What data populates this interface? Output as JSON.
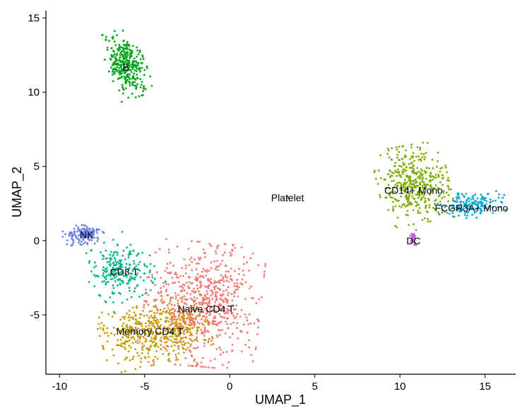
{
  "chart_data": {
    "type": "scatter",
    "title": "",
    "xlabel": "UMAP_1",
    "ylabel": "UMAP_2",
    "xlim": [
      -10.8,
      16.8
    ],
    "ylim": [
      -9.0,
      15.5
    ],
    "xticks": [
      -10,
      -5,
      0,
      5,
      10,
      15
    ],
    "yticks": [
      -5,
      0,
      5,
      10,
      15
    ],
    "xtick_labels": [
      "-10",
      "-5",
      "0",
      "5",
      "10",
      "15"
    ],
    "ytick_labels": [
      "-5",
      "0",
      "5",
      "10",
      "15"
    ],
    "grid": false,
    "legend": "none",
    "clusters": [
      {
        "label": "Naive CD4 T",
        "color": "#F8766D",
        "label_x": -1.4,
        "label_y": -4.6,
        "blobs": [
          {
            "cx": -1.6,
            "cy": -4.3,
            "sx": 1.55,
            "sy": 1.9,
            "rot": -0.1,
            "n": 700
          }
        ]
      },
      {
        "label": "Memory CD4 T",
        "color": "#C49A00",
        "label_x": -4.7,
        "label_y": -6.1,
        "blobs": [
          {
            "cx": -4.4,
            "cy": -6.2,
            "sx": 1.45,
            "sy": 0.95,
            "rot": 0.25,
            "n": 470
          }
        ]
      },
      {
        "label": "CD14+ Mono",
        "color": "#7CAE00",
        "label_x": 10.8,
        "label_y": 3.4,
        "blobs": [
          {
            "cx": 10.8,
            "cy": 3.8,
            "sx": 0.95,
            "sy": 1.2,
            "rot": 0.2,
            "n": 430
          }
        ]
      },
      {
        "label": "B",
        "color": "#00A619",
        "label_x": -6.1,
        "label_y": 11.7,
        "blobs": [
          {
            "cx": -6.1,
            "cy": 11.9,
            "sx": 0.5,
            "sy": 1.05,
            "rot": 0.35,
            "n": 330
          }
        ]
      },
      {
        "label": "CD8 T",
        "color": "#00B68A",
        "label_x": -6.2,
        "label_y": -2.1,
        "blobs": [
          {
            "cx": -6.4,
            "cy": -2.0,
            "sx": 0.9,
            "sy": 0.95,
            "rot": 0.6,
            "n": 230
          }
        ]
      },
      {
        "label": "FCGR3A+ Mono",
        "color": "#00A9D8",
        "label_x": 14.2,
        "label_y": 2.2,
        "blobs": [
          {
            "cx": 14.2,
            "cy": 2.4,
            "sx": 0.9,
            "sy": 0.4,
            "rot": 0.1,
            "n": 160
          }
        ]
      },
      {
        "label": "NK",
        "color": "#6A7EF0",
        "label_x": -8.4,
        "label_y": 0.4,
        "blobs": [
          {
            "cx": -8.6,
            "cy": 0.4,
            "sx": 0.55,
            "sy": 0.3,
            "rot": 0.1,
            "n": 150
          }
        ]
      },
      {
        "label": "DC",
        "color": "#D25BE0",
        "label_x": 10.8,
        "label_y": 0.0,
        "blobs": [
          {
            "cx": 10.8,
            "cy": 0.25,
            "sx": 0.1,
            "sy": 0.25,
            "rot": 0.0,
            "n": 30
          }
        ]
      },
      {
        "label": "Platelet",
        "color": "#EF5FA6",
        "label_x": 3.4,
        "label_y": 2.9,
        "blobs": [
          {
            "cx": 3.4,
            "cy": 2.95,
            "sx": 0.05,
            "sy": 0.05,
            "rot": 0.0,
            "n": 6
          }
        ]
      }
    ]
  }
}
